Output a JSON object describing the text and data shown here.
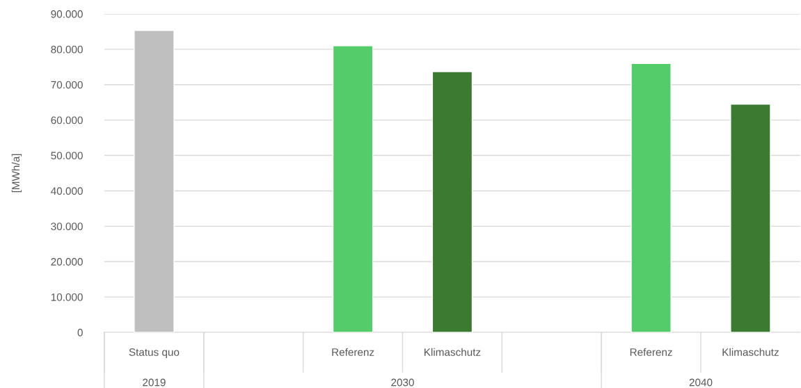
{
  "chart_data": {
    "type": "bar",
    "ylabel": "[MWh/a]",
    "categories": [
      "Status quo",
      null,
      "Referenz",
      "Klimaschutz",
      null,
      "Referenz",
      "Klimaschutz"
    ],
    "values": [
      85300,
      null,
      81000,
      73700,
      null,
      76000,
      64500
    ],
    "colors": [
      "#bfbfbf",
      "#bfbfbf",
      "#55cc6a",
      "#3b7a30",
      "#55cc6a",
      "#55cc6a",
      "#3b7a30"
    ],
    "ylim": [
      0,
      90000
    ],
    "yticks": [
      0,
      {
        "value": 10000,
        "label": "10.000"
      },
      {
        "value": 20000,
        "label": "20.000"
      },
      {
        "value": 30000,
        "label": "30.000"
      },
      {
        "value": 40000,
        "label": "40.000"
      },
      {
        "value": 50000,
        "label": "50.000"
      },
      {
        "value": 60000,
        "label": "60.000"
      },
      {
        "value": 70000,
        "label": "70.000"
      },
      {
        "value": 80000,
        "label": "80.000"
      },
      {
        "value": 90000,
        "label": "90.000"
      }
    ],
    "grid": "y",
    "annotations": [
      "2019",
      "2030",
      "2040"
    ]
  }
}
